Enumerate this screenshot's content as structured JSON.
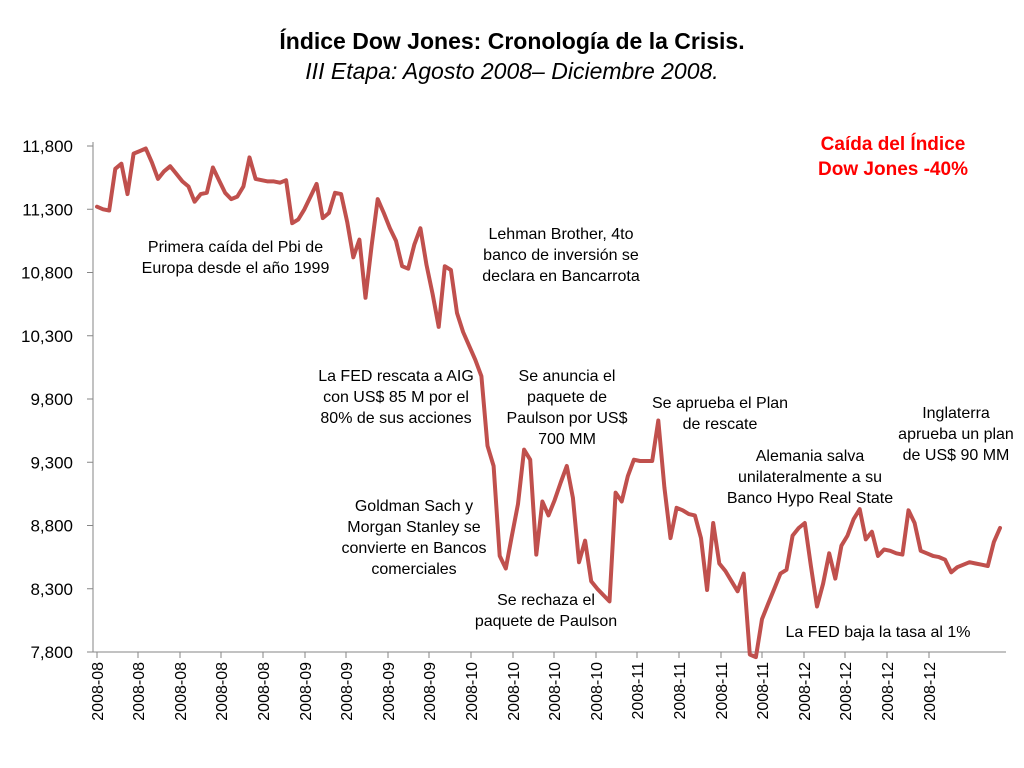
{
  "header": {
    "title": "Índice Dow Jones: Cronología de la Crisis.",
    "subtitle": "III Etapa: Agosto 2008– Diciembre 2008."
  },
  "callout": {
    "line1": "Caída del Índice",
    "line2": "Dow Jones -40%",
    "color": "#ff0000"
  },
  "annotations": [
    {
      "id": "pbi",
      "lines": [
        "Primera caída del Pbi de",
        "Europa desde el año 1999"
      ]
    },
    {
      "id": "lehman",
      "lines": [
        "Lehman Brother, 4to",
        "banco de inversión se",
        "declara en Bancarrota"
      ]
    },
    {
      "id": "aig",
      "lines": [
        "La FED rescata a AIG",
        "con US$ 85 M por el",
        "80% de sus acciones"
      ]
    },
    {
      "id": "paulson",
      "lines": [
        "Se anuncia el",
        "paquete de",
        "Paulson por US$",
        "700 MM"
      ]
    },
    {
      "id": "plan",
      "lines": [
        "Se aprueba el Plan",
        "de rescate"
      ]
    },
    {
      "id": "inglaterra",
      "lines": [
        "Inglaterra",
        "aprueba un plan",
        "de US$ 90 MM"
      ]
    },
    {
      "id": "alemania",
      "lines": [
        "Alemania salva",
        "unilateralmente a su",
        "Banco Hypo Real State"
      ]
    },
    {
      "id": "goldman",
      "lines": [
        "Goldman Sach y",
        "Morgan Stanley se",
        "convierte en Bancos",
        "comerciales"
      ]
    },
    {
      "id": "rechaza",
      "lines": [
        "Se rechaza el",
        "paquete de Paulson"
      ]
    },
    {
      "id": "fed1",
      "lines": [
        "La FED baja la tasa al 1%"
      ]
    }
  ],
  "chart_data": {
    "type": "line",
    "title": "Índice Dow Jones: Cronología de la Crisis.",
    "subtitle": "III Etapa: Agosto 2008– Diciembre 2008.",
    "xlabel": "",
    "ylabel": "",
    "ylim": [
      7800,
      11800
    ],
    "yticks": [
      7800,
      8300,
      8800,
      9300,
      9800,
      10300,
      10800,
      11300,
      11800
    ],
    "ytick_labels": [
      "7,800",
      "8,300",
      "8,800",
      "9,300",
      "9,800",
      "10,300",
      "10,800",
      "11,300",
      "11,800"
    ],
    "xtick_labels": [
      "2008-08",
      "2008-08",
      "2008-08",
      "2008-08",
      "2008-08",
      "2008-09",
      "2008-09",
      "2008-09",
      "2008-09",
      "2008-10",
      "2008-10",
      "2008-10",
      "2008-10",
      "2008-11",
      "2008-11",
      "2008-11",
      "2008-11",
      "2008-12",
      "2008-12",
      "2008-12",
      "2008-12"
    ],
    "series": [
      {
        "color": "#c0504d",
        "values": [
          11320,
          11300,
          11290,
          11620,
          11660,
          11420,
          11740,
          11760,
          11780,
          11670,
          11540,
          11600,
          11640,
          11580,
          11520,
          11480,
          11360,
          11420,
          11430,
          11630,
          11530,
          11430,
          11380,
          11400,
          11480,
          11710,
          11540,
          11530,
          11520,
          11520,
          11510,
          11530,
          11190,
          11220,
          11300,
          11400,
          11500,
          11230,
          11270,
          11430,
          11420,
          11200,
          10920,
          11060,
          10600,
          11010,
          11380,
          11270,
          11150,
          11050,
          10850,
          10830,
          11020,
          11150,
          10860,
          10630,
          10370,
          10850,
          10820,
          10480,
          10330,
          10220,
          10110,
          9980,
          9430,
          9270,
          8560,
          8460,
          8720,
          8970,
          9400,
          9320,
          8570,
          8990,
          8880,
          9000,
          9140,
          9270,
          9020,
          8510,
          8680,
          8360,
          8300,
          8250,
          8200,
          9060,
          8990,
          9190,
          9320,
          9310,
          9310,
          9310,
          9630,
          9100,
          8700,
          8940,
          8920,
          8890,
          8880,
          8700,
          8290,
          8820,
          8500,
          8440,
          8360,
          8280,
          8420,
          7780,
          7760,
          8060,
          8180,
          8300,
          8420,
          8450,
          8720,
          8780,
          8820,
          8480,
          8160,
          8340,
          8580,
          8380,
          8640,
          8720,
          8850,
          8930,
          8690,
          8750,
          8560,
          8610,
          8600,
          8580,
          8570,
          8920,
          8820,
          8600,
          8580,
          8560,
          8550,
          8530,
          8430,
          8470,
          8490,
          8510,
          8500,
          8490,
          8480,
          8670,
          8780
        ]
      }
    ]
  }
}
